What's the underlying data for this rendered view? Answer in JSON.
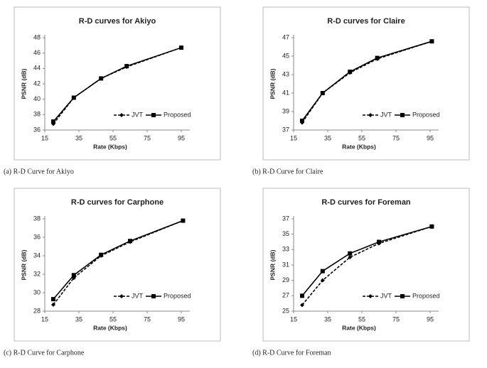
{
  "chart_data": [
    {
      "type": "line",
      "title": "R-D curves for Akiyo",
      "x_label": "Rate (Kbps)",
      "y_label": "PSNR (dB)",
      "caption": "(a) R-D Curve for Akiyo",
      "x": [
        20,
        32,
        48,
        63,
        95
      ],
      "xlim": [
        15,
        100
      ],
      "xticks": [
        15,
        35,
        55,
        75,
        95
      ],
      "ylim": [
        36,
        48
      ],
      "yticks": [
        36,
        38,
        40,
        42,
        44,
        46,
        48
      ],
      "series": [
        {
          "name": "JVT",
          "color": "#000000",
          "dashed": true,
          "marker": "diamond",
          "values": [
            36.8,
            40.2,
            42.7,
            44.2,
            46.7
          ]
        },
        {
          "name": "Proposed",
          "color": "#000000",
          "dashed": false,
          "marker": "square",
          "values": [
            37.1,
            40.2,
            42.7,
            44.3,
            46.7
          ]
        }
      ]
    },
    {
      "type": "line",
      "title": "R-D curves for Claire",
      "x_label": "Rate (Kbps)",
      "y_label": "PSNR (dB)",
      "caption": "(b) R-D Curve for Claire",
      "x": [
        20,
        32,
        48,
        64,
        96
      ],
      "xlim": [
        15,
        100
      ],
      "xticks": [
        15,
        35,
        55,
        75,
        95
      ],
      "ylim": [
        37,
        47
      ],
      "yticks": [
        37,
        39,
        41,
        43,
        45,
        47
      ],
      "series": [
        {
          "name": "JVT",
          "color": "#000000",
          "dashed": true,
          "marker": "diamond",
          "values": [
            37.8,
            41.0,
            43.2,
            44.7,
            46.6
          ]
        },
        {
          "name": "Proposed",
          "color": "#000000",
          "dashed": false,
          "marker": "square",
          "values": [
            38.0,
            41.0,
            43.3,
            44.8,
            46.6
          ]
        }
      ]
    },
    {
      "type": "line",
      "title": "R-D curves for Carphone",
      "x_label": "Rate (Kbps)",
      "y_label": "PSNR (dB)",
      "caption": "(c) R-D Curve for Carphone",
      "x": [
        20,
        32,
        48,
        65,
        96
      ],
      "xlim": [
        15,
        100
      ],
      "xticks": [
        15,
        35,
        55,
        75,
        95
      ],
      "ylim": [
        28,
        38
      ],
      "yticks": [
        28,
        30,
        32,
        34,
        36,
        38
      ],
      "series": [
        {
          "name": "JVT",
          "color": "#000000",
          "dashed": true,
          "marker": "diamond",
          "values": [
            28.7,
            31.6,
            34.0,
            35.5,
            37.8
          ]
        },
        {
          "name": "Proposed",
          "color": "#000000",
          "dashed": false,
          "marker": "square",
          "values": [
            29.3,
            31.9,
            34.1,
            35.6,
            37.8
          ]
        }
      ]
    },
    {
      "type": "line",
      "title": "R-D curves for Foreman",
      "x_label": "Rate (Kbps)",
      "y_label": "PSNR (dB)",
      "caption": "(d) R-D Curve for Foreman",
      "x": [
        20,
        32,
        48,
        65,
        96
      ],
      "xlim": [
        15,
        100
      ],
      "xticks": [
        15,
        35,
        55,
        75,
        95
      ],
      "ylim": [
        25,
        37
      ],
      "yticks": [
        25,
        27,
        29,
        31,
        33,
        35,
        37
      ],
      "series": [
        {
          "name": "JVT",
          "color": "#000000",
          "dashed": true,
          "marker": "diamond",
          "values": [
            25.8,
            29.0,
            32.0,
            33.8,
            36.0
          ]
        },
        {
          "name": "Proposed",
          "color": "#000000",
          "dashed": false,
          "marker": "square",
          "values": [
            27.0,
            30.2,
            32.5,
            34.0,
            36.0
          ]
        }
      ]
    }
  ]
}
